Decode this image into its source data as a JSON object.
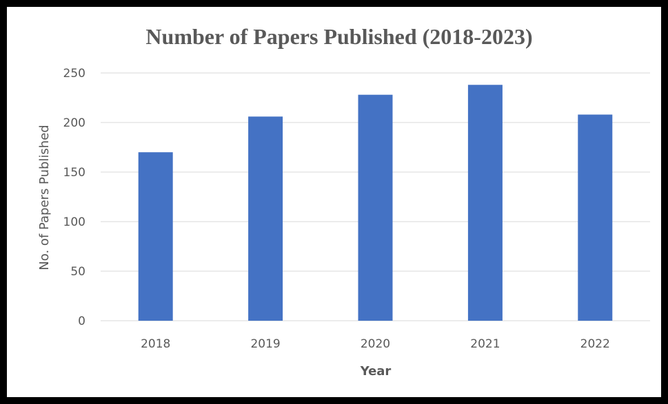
{
  "chart_data": {
    "type": "bar",
    "title": "Number of Papers Published (2018-2023)",
    "xlabel": "Year",
    "ylabel": "No. of Papers Published",
    "categories": [
      "2018",
      "2019",
      "2020",
      "2021",
      "2022"
    ],
    "values": [
      170,
      206,
      228,
      238,
      208
    ],
    "ylim": [
      0,
      250
    ],
    "yticks": [
      "0",
      "50",
      "100",
      "150",
      "200",
      "250"
    ],
    "grid": true,
    "legend": "none",
    "bar_color": "#4472C4",
    "grid_color": "#D9D9D9"
  }
}
